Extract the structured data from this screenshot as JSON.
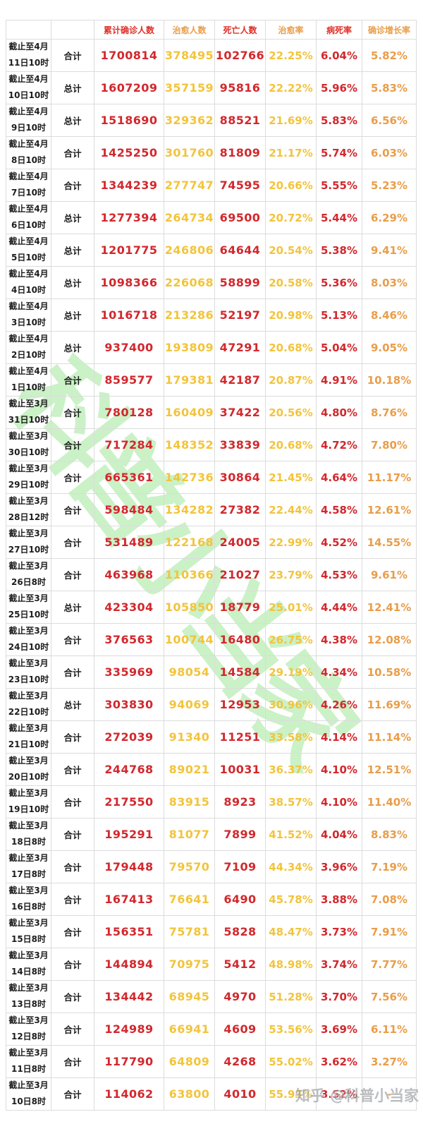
{
  "colors": {
    "red": "#d2282d",
    "gold": "#f2c43c",
    "orange": "#e99d4a",
    "header_red": "#df2f28",
    "text_dark": "#1d1d1d",
    "border": "#dcdcdc",
    "watermark_green": "#9ce595",
    "attribution_gray": "#8e9296"
  },
  "watermark": {
    "text": "科普小当家"
  },
  "attribution": {
    "text": "知乎 @科普小当家"
  },
  "chart_data": {
    "type": "table",
    "columns": [
      {
        "key": "date",
        "label": ""
      },
      {
        "key": "total_label",
        "label": ""
      },
      {
        "key": "confirmed",
        "label": "累计确诊人数",
        "header_color": "red",
        "value_color": "red",
        "style": "count"
      },
      {
        "key": "cured",
        "label": "治愈人数",
        "header_color": "orange",
        "value_color": "gold",
        "style": "count"
      },
      {
        "key": "deaths",
        "label": "死亡人数",
        "header_color": "red",
        "value_color": "red",
        "style": "count"
      },
      {
        "key": "cure_rate",
        "label": "治愈率",
        "header_color": "orange",
        "value_color": "gold",
        "style": "pct"
      },
      {
        "key": "fatality_rate",
        "label": "病死率",
        "header_color": "red",
        "value_color": "red",
        "style": "pct"
      },
      {
        "key": "growth_rate",
        "label": "确诊增长率",
        "header_color": "orange",
        "value_color": "orange",
        "style": "pct"
      }
    ],
    "rows": [
      {
        "date": [
          "截止至4月",
          "11日10时"
        ],
        "total_label": "合计",
        "confirmed": "1700814",
        "cured": "378495",
        "deaths": "102766",
        "cure_rate": "22.25%",
        "fatality_rate": "6.04%",
        "growth_rate": "5.82%"
      },
      {
        "date": [
          "截止至4月",
          "10日10时"
        ],
        "total_label": "总计",
        "confirmed": "1607209",
        "cured": "357159",
        "deaths": "95816",
        "cure_rate": "22.22%",
        "fatality_rate": "5.96%",
        "growth_rate": "5.83%"
      },
      {
        "date": [
          "截止至4月",
          "9日10时"
        ],
        "total_label": "总计",
        "confirmed": "1518690",
        "cured": "329362",
        "deaths": "88521",
        "cure_rate": "21.69%",
        "fatality_rate": "5.83%",
        "growth_rate": "6.56%"
      },
      {
        "date": [
          "截止至4月",
          "8日10时"
        ],
        "total_label": "合计",
        "confirmed": "1425250",
        "cured": "301760",
        "deaths": "81809",
        "cure_rate": "21.17%",
        "fatality_rate": "5.74%",
        "growth_rate": "6.03%"
      },
      {
        "date": [
          "截止至4月",
          "7日10时"
        ],
        "total_label": "合计",
        "confirmed": "1344239",
        "cured": "277747",
        "deaths": "74595",
        "cure_rate": "20.66%",
        "fatality_rate": "5.55%",
        "growth_rate": "5.23%"
      },
      {
        "date": [
          "截止至4月",
          "6日10时"
        ],
        "total_label": "总计",
        "confirmed": "1277394",
        "cured": "264734",
        "deaths": "69500",
        "cure_rate": "20.72%",
        "fatality_rate": "5.44%",
        "growth_rate": "6.29%"
      },
      {
        "date": [
          "截止至4月",
          "5日10时"
        ],
        "total_label": "总计",
        "confirmed": "1201775",
        "cured": "246806",
        "deaths": "64644",
        "cure_rate": "20.54%",
        "fatality_rate": "5.38%",
        "growth_rate": "9.41%"
      },
      {
        "date": [
          "截止至4月",
          "4日10时"
        ],
        "total_label": "总计",
        "confirmed": "1098366",
        "cured": "226068",
        "deaths": "58899",
        "cure_rate": "20.58%",
        "fatality_rate": "5.36%",
        "growth_rate": "8.03%"
      },
      {
        "date": [
          "截止至4月",
          "3日10时"
        ],
        "total_label": "总计",
        "confirmed": "1016718",
        "cured": "213286",
        "deaths": "52197",
        "cure_rate": "20.98%",
        "fatality_rate": "5.13%",
        "growth_rate": "8.46%"
      },
      {
        "date": [
          "截止至4月",
          "2日10时"
        ],
        "total_label": "总计",
        "confirmed": "937400",
        "cured": "193809",
        "deaths": "47291",
        "cure_rate": "20.68%",
        "fatality_rate": "5.04%",
        "growth_rate": "9.05%"
      },
      {
        "date": [
          "截止至4月",
          "1日10时"
        ],
        "total_label": "合计",
        "confirmed": "859577",
        "cured": "179381",
        "deaths": "42187",
        "cure_rate": "20.87%",
        "fatality_rate": "4.91%",
        "growth_rate": "10.18%"
      },
      {
        "date": [
          "截止至3月",
          "31日10时"
        ],
        "total_label": "合计",
        "confirmed": "780128",
        "cured": "160409",
        "deaths": "37422",
        "cure_rate": "20.56%",
        "fatality_rate": "4.80%",
        "growth_rate": "8.76%"
      },
      {
        "date": [
          "截止至3月",
          "30日10时"
        ],
        "total_label": "合计",
        "confirmed": "717284",
        "cured": "148352",
        "deaths": "33839",
        "cure_rate": "20.68%",
        "fatality_rate": "4.72%",
        "growth_rate": "7.80%"
      },
      {
        "date": [
          "截止至3月",
          "29日10时"
        ],
        "total_label": "合计",
        "confirmed": "665361",
        "cured": "142736",
        "deaths": "30864",
        "cure_rate": "21.45%",
        "fatality_rate": "4.64%",
        "growth_rate": "11.17%"
      },
      {
        "date": [
          "截止至3月",
          "28日12时"
        ],
        "total_label": "合计",
        "confirmed": "598484",
        "cured": "134282",
        "deaths": "27382",
        "cure_rate": "22.44%",
        "fatality_rate": "4.58%",
        "growth_rate": "12.61%"
      },
      {
        "date": [
          "截止至3月",
          "27日10时"
        ],
        "total_label": "合计",
        "confirmed": "531489",
        "cured": "122168",
        "deaths": "24005",
        "cure_rate": "22.99%",
        "fatality_rate": "4.52%",
        "growth_rate": "14.55%"
      },
      {
        "date": [
          "截止至3月",
          "26日8时"
        ],
        "total_label": "合计",
        "confirmed": "463968",
        "cured": "110366",
        "deaths": "21027",
        "cure_rate": "23.79%",
        "fatality_rate": "4.53%",
        "growth_rate": "9.61%"
      },
      {
        "date": [
          "截止至3月",
          "25日10时"
        ],
        "total_label": "总计",
        "confirmed": "423304",
        "cured": "105850",
        "deaths": "18779",
        "cure_rate": "25.01%",
        "fatality_rate": "4.44%",
        "growth_rate": "12.41%"
      },
      {
        "date": [
          "截止至3月",
          "24日10时"
        ],
        "total_label": "合计",
        "confirmed": "376563",
        "cured": "100744",
        "deaths": "16480",
        "cure_rate": "26.75%",
        "fatality_rate": "4.38%",
        "growth_rate": "12.08%"
      },
      {
        "date": [
          "截止至3月",
          "23日10时"
        ],
        "total_label": "合计",
        "confirmed": "335969",
        "cured": "98054",
        "deaths": "14584",
        "cure_rate": "29.19%",
        "fatality_rate": "4.34%",
        "growth_rate": "10.58%"
      },
      {
        "date": [
          "截止至3月",
          "22日10时"
        ],
        "total_label": "总计",
        "confirmed": "303830",
        "cured": "94069",
        "deaths": "12953",
        "cure_rate": "30.96%",
        "fatality_rate": "4.26%",
        "growth_rate": "11.69%"
      },
      {
        "date": [
          "截止至3月",
          "21日10时"
        ],
        "total_label": "合计",
        "confirmed": "272039",
        "cured": "91340",
        "deaths": "11251",
        "cure_rate": "33.58%",
        "fatality_rate": "4.14%",
        "growth_rate": "11.14%"
      },
      {
        "date": [
          "截止至3月",
          "20日10时"
        ],
        "total_label": "合计",
        "confirmed": "244768",
        "cured": "89021",
        "deaths": "10031",
        "cure_rate": "36.37%",
        "fatality_rate": "4.10%",
        "growth_rate": "12.51%"
      },
      {
        "date": [
          "截止至3月",
          "19日10时"
        ],
        "total_label": "合计",
        "confirmed": "217550",
        "cured": "83915",
        "deaths": "8923",
        "cure_rate": "38.57%",
        "fatality_rate": "4.10%",
        "growth_rate": "11.40%"
      },
      {
        "date": [
          "截止至3月",
          "18日8时"
        ],
        "total_label": "合计",
        "confirmed": "195291",
        "cured": "81077",
        "deaths": "7899",
        "cure_rate": "41.52%",
        "fatality_rate": "4.04%",
        "growth_rate": "8.83%"
      },
      {
        "date": [
          "截止至3月",
          "17日8时"
        ],
        "total_label": "合计",
        "confirmed": "179448",
        "cured": "79570",
        "deaths": "7109",
        "cure_rate": "44.34%",
        "fatality_rate": "3.96%",
        "growth_rate": "7.19%"
      },
      {
        "date": [
          "截止至3月",
          "16日8时"
        ],
        "total_label": "合计",
        "confirmed": "167413",
        "cured": "76641",
        "deaths": "6490",
        "cure_rate": "45.78%",
        "fatality_rate": "3.88%",
        "growth_rate": "7.08%"
      },
      {
        "date": [
          "截止至3月",
          "15日8时"
        ],
        "total_label": "合计",
        "confirmed": "156351",
        "cured": "75781",
        "deaths": "5828",
        "cure_rate": "48.47%",
        "fatality_rate": "3.73%",
        "growth_rate": "7.91%"
      },
      {
        "date": [
          "截止至3月",
          "14日8时"
        ],
        "total_label": "合计",
        "confirmed": "144894",
        "cured": "70975",
        "deaths": "5412",
        "cure_rate": "48.98%",
        "fatality_rate": "3.74%",
        "growth_rate": "7.77%"
      },
      {
        "date": [
          "截止至3月",
          "13日8时"
        ],
        "total_label": "合计",
        "confirmed": "134442",
        "cured": "68945",
        "deaths": "4970",
        "cure_rate": "51.28%",
        "fatality_rate": "3.70%",
        "growth_rate": "7.56%"
      },
      {
        "date": [
          "截止至3月",
          "12日8时"
        ],
        "total_label": "合计",
        "confirmed": "124989",
        "cured": "66941",
        "deaths": "4609",
        "cure_rate": "53.56%",
        "fatality_rate": "3.69%",
        "growth_rate": "6.11%"
      },
      {
        "date": [
          "截止至3月",
          "11日8时"
        ],
        "total_label": "合计",
        "confirmed": "117790",
        "cured": "64809",
        "deaths": "4268",
        "cure_rate": "55.02%",
        "fatality_rate": "3.62%",
        "growth_rate": "3.27%"
      },
      {
        "date": [
          "截止至3月",
          "10日8时"
        ],
        "total_label": "合计",
        "confirmed": "114062",
        "cured": "63800",
        "deaths": "4010",
        "cure_rate": "55.93%",
        "fatality_rate": "3.52%",
        "growth_rate": "-"
      }
    ]
  }
}
